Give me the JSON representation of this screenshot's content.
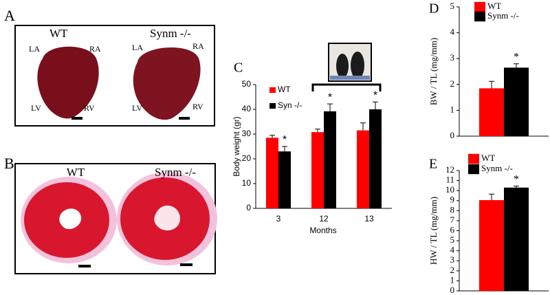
{
  "photos": {
    "a": {
      "panel": "A",
      "groups": [
        "WT",
        "Synm -/-"
      ],
      "chambers": [
        "LA",
        "RA",
        "LV",
        "RV",
        "LA",
        "RA",
        "LV",
        "RV"
      ]
    },
    "b": {
      "panel": "B",
      "groups": [
        "WT",
        "Synm -/-"
      ]
    }
  },
  "chart_data": [
    {
      "type": "bar",
      "panel": "C",
      "ylabel": "Body weight (gr)",
      "xlabel": "Months",
      "categories": [
        "3",
        "12",
        "13"
      ],
      "series": [
        {
          "name": "WT",
          "color": "#ff0000",
          "values": [
            28.5,
            30.8,
            31.5
          ],
          "errors": [
            1,
            1.2,
            3
          ]
        },
        {
          "name": "Syn -/-",
          "color": "#000000",
          "values": [
            23,
            39.2,
            40
          ],
          "errors": [
            2,
            3,
            3
          ],
          "annotations": [
            "*",
            "*",
            "*"
          ]
        }
      ],
      "ylim": [
        0,
        50
      ],
      "yticks": [
        0,
        10,
        20,
        30,
        40,
        50
      ]
    },
    {
      "type": "bar",
      "panel": "D",
      "ylabel": "BW / TL  (mg/mm)",
      "categories": [
        null
      ],
      "series": [
        {
          "name": "WT",
          "color": "#ff0000",
          "values": [
            1.85
          ],
          "errors": [
            0.27
          ]
        },
        {
          "name": "Synm -/-",
          "color": "#000000",
          "values": [
            2.65
          ],
          "errors": [
            0.15
          ],
          "annotations": [
            "*"
          ]
        }
      ],
      "ylim": [
        0,
        5
      ],
      "yticks": [
        0,
        1,
        2,
        3,
        4,
        5
      ]
    },
    {
      "type": "bar",
      "panel": "E",
      "ylabel": "HW / TL  (mg/mm)",
      "categories": [
        null
      ],
      "series": [
        {
          "name": "WT",
          "color": "#ff0000",
          "values": [
            9.05
          ],
          "errors": [
            0.6
          ]
        },
        {
          "name": "Synm -/-",
          "color": "#000000",
          "values": [
            10.3
          ],
          "errors": [
            0.15
          ],
          "annotations": [
            "*"
          ]
        }
      ],
      "ylim": [
        0,
        12
      ],
      "yticks": [
        0,
        1,
        2,
        3,
        4,
        5,
        6,
        7,
        8,
        9,
        10,
        11,
        12
      ]
    }
  ]
}
